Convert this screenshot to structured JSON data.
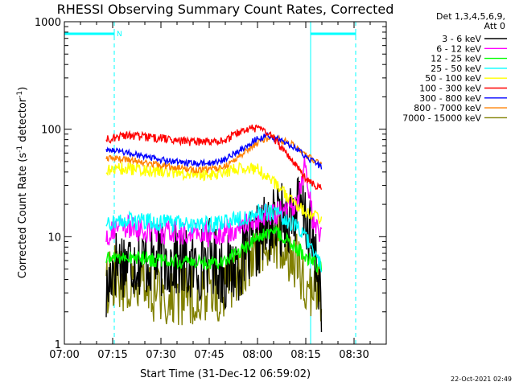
{
  "chart_data": {
    "type": "line",
    "title": "RHESSI Observing Summary Count Rates, Corrected",
    "xlabel": "Start Time (31-Dec-12 06:59:02)",
    "ylabel_main": "Corrected Count Rate (s",
    "ylabel_sup1": "-1",
    "ylabel_mid": " detector",
    "ylabel_sup2": "-1",
    "ylabel_end": ")",
    "x_unit": "minutes since 07:00",
    "xlim": [
      0,
      100
    ],
    "ylim": [
      1,
      1000
    ],
    "y_scale": "log",
    "x_ticks": [
      {
        "value": 0,
        "label": "07:00"
      },
      {
        "value": 15,
        "label": "07:15"
      },
      {
        "value": 30,
        "label": "07:30"
      },
      {
        "value": 45,
        "label": "07:45"
      },
      {
        "value": 60,
        "label": "08:00"
      },
      {
        "value": 75,
        "label": "08:15"
      },
      {
        "value": 90,
        "label": "08:30"
      }
    ],
    "y_ticks": [
      {
        "value": 1,
        "label": "1"
      },
      {
        "value": 10,
        "label": "10"
      },
      {
        "value": 100,
        "label": "100"
      },
      {
        "value": 1000,
        "label": "1000"
      }
    ],
    "legend": {
      "placement": "right",
      "header_line1": "Det 1,3,4,5,6,9,",
      "header_line2": "Att 0"
    },
    "series": [
      {
        "name": "3 - 6 keV",
        "color": "#000000",
        "x": [
          13,
          15,
          17,
          25,
          35,
          40,
          42,
          45,
          50,
          55,
          60,
          62,
          65,
          70,
          73,
          75,
          78,
          80
        ],
        "y": [
          2.7,
          5.5,
          6.0,
          6.0,
          6.0,
          5.0,
          5.5,
          7.0,
          4.5,
          6.0,
          9.0,
          11.0,
          13.0,
          16.0,
          18.0,
          15.0,
          6.0,
          2.7
        ]
      },
      {
        "name": "6 - 12 keV",
        "color": "#ff00ff",
        "x": [
          13,
          15,
          20,
          30,
          40,
          45,
          50,
          55,
          60,
          65,
          68,
          70,
          73,
          75,
          77,
          80
        ],
        "y": [
          10.0,
          12.0,
          12.0,
          11.0,
          10.5,
          10.5,
          11.0,
          12.5,
          15.0,
          16.5,
          17.0,
          18.0,
          24.0,
          48.0,
          15.0,
          10.5
        ]
      },
      {
        "name": "12 - 25 keV",
        "color": "#00ff00",
        "x": [
          13,
          15,
          20,
          30,
          40,
          45,
          50,
          55,
          60,
          65,
          68,
          70,
          73,
          75,
          78,
          80
        ],
        "y": [
          6.0,
          6.5,
          6.5,
          6.0,
          5.8,
          5.8,
          6.0,
          7.5,
          10.0,
          11.0,
          10.0,
          8.5,
          7.5,
          6.5,
          5.5,
          5.0
        ]
      },
      {
        "name": "25 - 50 keV",
        "color": "#00ffff",
        "x": [
          13,
          15,
          20,
          30,
          40,
          45,
          50,
          55,
          60,
          65,
          68,
          70,
          73,
          75,
          78,
          80
        ],
        "y": [
          13.0,
          14.0,
          14.0,
          13.5,
          13.0,
          13.0,
          13.5,
          15.0,
          17.0,
          16.5,
          15.0,
          13.5,
          11.5,
          9.5,
          7.0,
          5.5
        ]
      },
      {
        "name": "50 - 100 keV",
        "color": "#ffff00",
        "x": [
          13,
          15,
          20,
          30,
          40,
          45,
          50,
          55,
          60,
          65,
          68,
          70,
          73,
          75,
          78,
          80
        ],
        "y": [
          40.0,
          43.0,
          43.0,
          40.0,
          38.0,
          38.0,
          40.0,
          45.0,
          42.0,
          32.0,
          26.0,
          22.0,
          19.0,
          17.0,
          15.5,
          14.5
        ]
      },
      {
        "name": "100 - 300 keV",
        "color": "#ff0000",
        "x": [
          13,
          15,
          20,
          30,
          40,
          45,
          50,
          55,
          58,
          60,
          62,
          65,
          68,
          70,
          73,
          75,
          78,
          80
        ],
        "y": [
          80.0,
          83.0,
          88.0,
          82.0,
          76.0,
          76.0,
          80.0,
          95.0,
          102.0,
          100.0,
          95.0,
          82.0,
          65.0,
          52.0,
          42.0,
          35.0,
          30.0,
          28.0
        ]
      },
      {
        "name": "300 - 800 keV",
        "color": "#0000ff",
        "x": [
          13,
          15,
          20,
          30,
          40,
          45,
          50,
          55,
          60,
          63,
          66,
          70,
          73,
          75,
          78,
          80
        ],
        "y": [
          65.0,
          65.0,
          60.0,
          52.0,
          48.0,
          48.0,
          52.0,
          65.0,
          82.0,
          86.0,
          82.0,
          72.0,
          62.0,
          55.0,
          48.0,
          45.0
        ]
      },
      {
        "name": "800 - 7000 keV",
        "color": "#ff8000",
        "x": [
          13,
          15,
          20,
          30,
          40,
          45,
          50,
          55,
          60,
          63,
          65,
          70,
          73,
          75,
          78,
          80
        ],
        "y": [
          52.0,
          54.0,
          52.0,
          46.0,
          42.0,
          42.0,
          45.0,
          58.0,
          75.0,
          82.0,
          83.0,
          75.0,
          65.0,
          58.0,
          50.0,
          46.0
        ]
      },
      {
        "name": "7000 - 15000 keV",
        "color": "#808000",
        "x": [
          13,
          15,
          20,
          30,
          40,
          45,
          50,
          55,
          60,
          63,
          65,
          68,
          70,
          73,
          75,
          78,
          80
        ],
        "y": [
          3.5,
          4.5,
          3.5,
          3.0,
          3.0,
          3.0,
          3.5,
          5.0,
          8.0,
          10.0,
          10.0,
          8.5,
          7.0,
          5.0,
          4.0,
          3.0,
          2.5
        ]
      }
    ],
    "flag_bars": [
      {
        "start": 0,
        "end": 15.5,
        "label": "N"
      },
      {
        "start": 76.5,
        "end": 90.5,
        "label": ""
      }
    ],
    "vlines_solid": [
      0,
      76.5
    ],
    "vlines_dashed": [
      15.5,
      90.5
    ],
    "timestamp": "22-Oct-2021 02:49"
  },
  "colors": {
    "flag": "#00ffff",
    "axis": "#000000"
  }
}
